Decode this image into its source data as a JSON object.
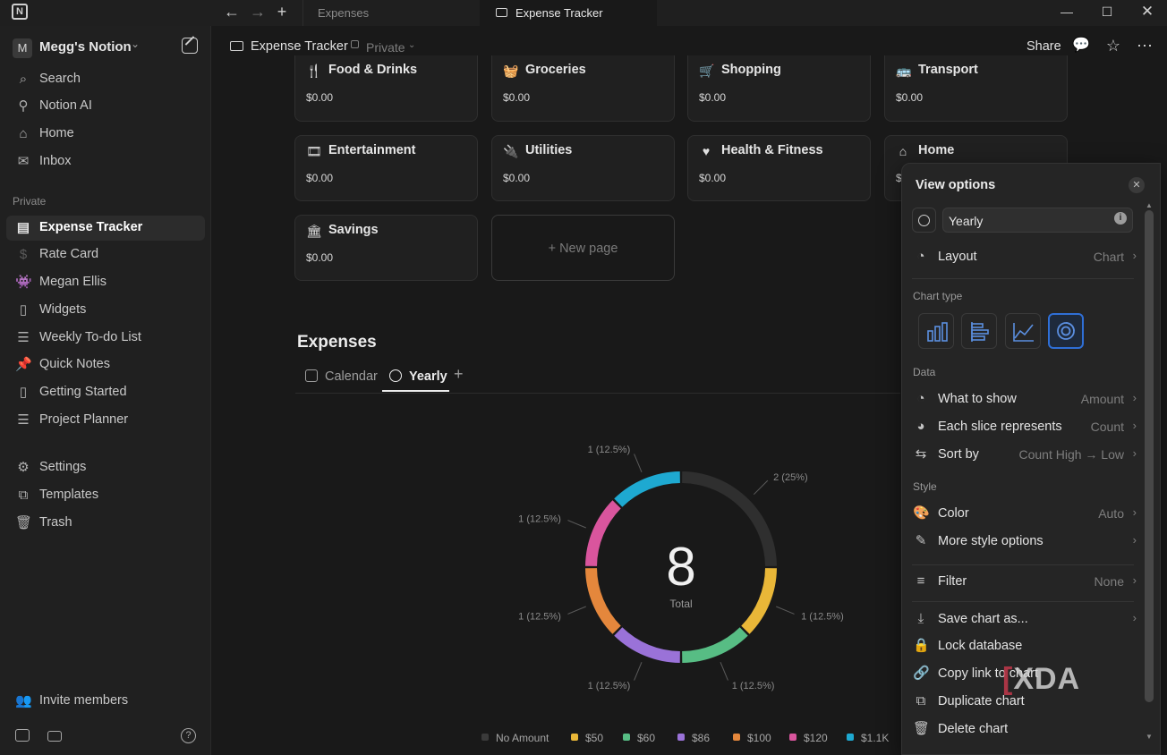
{
  "titlebar": {
    "tabs": [
      {
        "label": "Expenses"
      },
      {
        "label": "Expense Tracker"
      }
    ]
  },
  "sidebar": {
    "workspace_initial": "M",
    "workspace_name": "Megg's Notion",
    "top_items": [
      {
        "label": "Search",
        "icon": "search-icon"
      },
      {
        "label": "Notion AI",
        "icon": "ai-icon"
      },
      {
        "label": "Home",
        "icon": "home-icon"
      },
      {
        "label": "Inbox",
        "icon": "inbox-icon"
      }
    ],
    "section_label": "Private",
    "pages": [
      {
        "label": "Expense Tracker",
        "icon": "table-icon",
        "active": true
      },
      {
        "label": "Rate Card",
        "icon": "dollar-icon"
      },
      {
        "label": "Megan Ellis",
        "icon": "invader-icon",
        "icon_color": "#3cb26a"
      },
      {
        "label": "Widgets",
        "icon": "page-icon"
      },
      {
        "label": "Weekly To-do List",
        "icon": "list-icon"
      },
      {
        "label": "Quick Notes",
        "icon": "pin-icon",
        "icon_color": "#e0454a"
      },
      {
        "label": "Getting Started",
        "icon": "page-icon"
      },
      {
        "label": "Project Planner",
        "icon": "list-icon"
      }
    ],
    "bottom_items": [
      {
        "label": "Settings",
        "icon": "gear-icon"
      },
      {
        "label": "Templates",
        "icon": "templates-icon"
      },
      {
        "label": "Trash",
        "icon": "trash-icon"
      }
    ],
    "invite_label": "Invite members"
  },
  "header": {
    "page_title": "Expense Tracker",
    "privacy": "Private",
    "share_label": "Share"
  },
  "cards": [
    {
      "title": "Food & Drinks",
      "value": "$0.00",
      "icon": "fork-knife-icon"
    },
    {
      "title": "Groceries",
      "value": "$0.00",
      "icon": "basket-icon"
    },
    {
      "title": "Shopping",
      "value": "$0.00",
      "icon": "cart-icon"
    },
    {
      "title": "Transport",
      "value": "$0.00",
      "icon": "bus-icon"
    },
    {
      "title": "Entertainment",
      "value": "$0.00",
      "icon": "film-icon"
    },
    {
      "title": "Utilities",
      "value": "$0.00",
      "icon": "plug-icon"
    },
    {
      "title": "Health & Fitness",
      "value": "$0.00",
      "icon": "heart-icon"
    },
    {
      "title": "Home",
      "value": "$",
      "icon": "house-icon"
    },
    {
      "title": "Savings",
      "value": "$0.00",
      "icon": "bank-icon"
    }
  ],
  "new_page_label": "+ New page",
  "expenses": {
    "title": "Expenses",
    "views": [
      {
        "label": "Calendar",
        "selected": false
      },
      {
        "label": "Yearly",
        "selected": true
      }
    ],
    "add_view": "+"
  },
  "chart_data": {
    "type": "pie",
    "style": "donut",
    "center_value": "8",
    "center_label": "Total",
    "slices": [
      {
        "label": "No Amount",
        "value": 2,
        "display": "2 (25%)",
        "color": "#2f2f2f"
      },
      {
        "label": "$50",
        "value": 1,
        "display": "1 (12.5%)",
        "color": "#e9b738"
      },
      {
        "label": "$60",
        "value": 1,
        "display": "1 (12.5%)",
        "color": "#57bd84"
      },
      {
        "label": "$86",
        "value": 1,
        "display": "1 (12.5%)",
        "color": "#9a72d8"
      },
      {
        "label": "$100",
        "value": 1,
        "display": "1 (12.5%)",
        "color": "#e4873c"
      },
      {
        "label": "$120",
        "value": 1,
        "display": "1 (12.5%)",
        "color": "#d9559d"
      },
      {
        "label": "$1.1K",
        "value": 1,
        "display": "1 (12.5%)",
        "color": "#1ea9d1"
      }
    ],
    "legend": [
      "No Amount",
      "$50",
      "$60",
      "$86",
      "$100",
      "$120",
      "$1.1K"
    ]
  },
  "view_options": {
    "title": "View options",
    "view_name": "Yearly",
    "layout_label": "Layout",
    "layout_value": "Chart",
    "chart_type_label": "Chart type",
    "chart_types": [
      "vertical-bar",
      "horizontal-bar",
      "line",
      "donut"
    ],
    "chart_type_selected": "donut",
    "data_label": "Data",
    "data_rows": [
      {
        "label": "What to show",
        "value": "Amount"
      },
      {
        "label": "Each slice represents",
        "value": "Count"
      },
      {
        "label": "Sort by",
        "value": "Count High → Low"
      }
    ],
    "style_label": "Style",
    "style_rows": [
      {
        "label": "Color",
        "value": "Auto"
      },
      {
        "label": "More style options",
        "value": ""
      }
    ],
    "filter_label": "Filter",
    "filter_value": "None",
    "actions": [
      {
        "label": "Save chart as...",
        "icon": "download-icon",
        "chevron": true
      },
      {
        "label": "Lock database",
        "icon": "lock-icon",
        "chevron": false
      },
      {
        "label": "Copy link to chart",
        "icon": "link-icon",
        "chevron": false
      },
      {
        "label": "Duplicate chart",
        "icon": "duplicate-icon",
        "chevron": false
      },
      {
        "label": "Delete chart",
        "icon": "trash-icon",
        "chevron": false
      }
    ]
  },
  "watermark": {
    "prefix": "",
    "text": "XDA"
  }
}
